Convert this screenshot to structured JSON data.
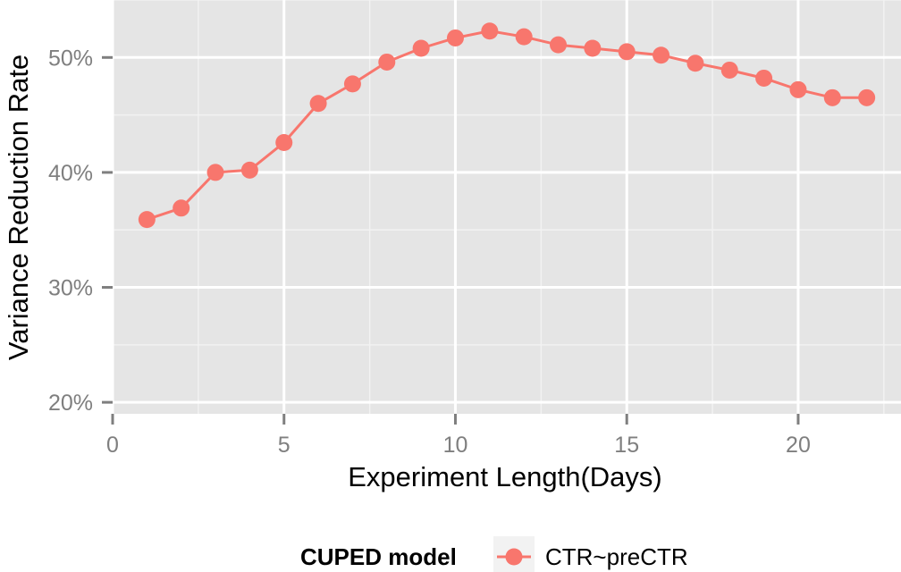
{
  "chart_data": {
    "type": "line",
    "title": "",
    "xlabel": "Experiment Length(Days)",
    "ylabel": "Variance Reduction Rate",
    "xlim": [
      0,
      23
    ],
    "ylim": [
      19,
      55
    ],
    "x_ticks": [
      0,
      5,
      10,
      15,
      20
    ],
    "x_tick_labels": [
      "0",
      "5",
      "10",
      "15",
      "20"
    ],
    "y_ticks": [
      20,
      30,
      40,
      50
    ],
    "y_tick_labels": [
      "20%",
      "30%",
      "40%",
      "50%"
    ],
    "grid": true,
    "legend_position": "bottom",
    "legend_title": "CUPED model",
    "series": [
      {
        "name": "CTR~preCTR",
        "color": "#F8766D",
        "x": [
          1,
          2,
          3,
          4,
          5,
          6,
          7,
          8,
          9,
          10,
          11,
          12,
          13,
          14,
          15,
          16,
          17,
          18,
          19,
          20,
          21,
          22
        ],
        "values": [
          35.9,
          36.9,
          40.0,
          40.2,
          42.6,
          46.0,
          47.7,
          49.6,
          50.8,
          51.7,
          52.3,
          51.8,
          51.1,
          50.8,
          50.5,
          50.2,
          49.5,
          48.9,
          48.2,
          47.2,
          46.5,
          46.5
        ]
      }
    ],
    "panel_background": "#E5E5E5",
    "grid_color": "#FFFFFF"
  }
}
